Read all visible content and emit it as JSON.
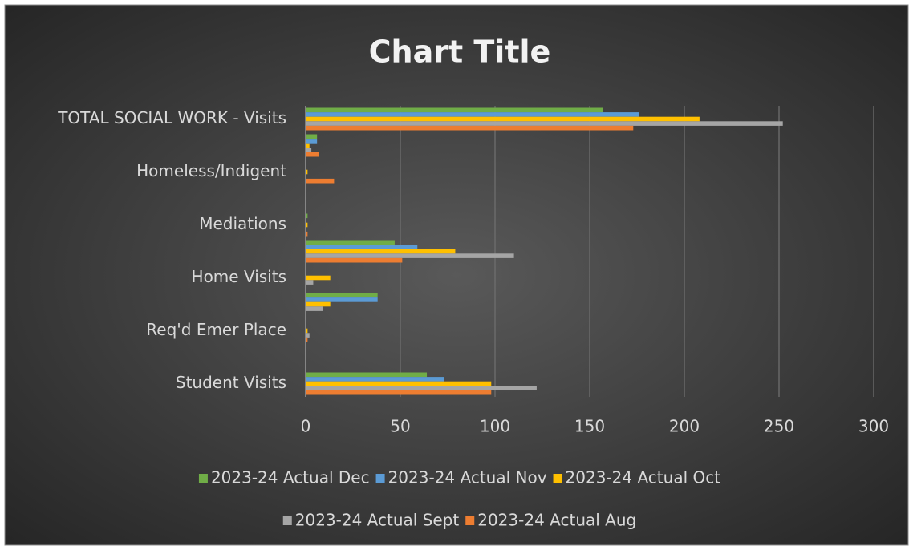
{
  "chart_data": {
    "type": "bar",
    "orientation": "horizontal",
    "title": "Chart Title",
    "categories": [
      "Student Visits",
      null,
      "Req'd Emer Place",
      null,
      "Home Visits",
      null,
      "Mediations",
      null,
      "Homeless/Indigent",
      null,
      "TOTAL SOCIAL WORK - Visits"
    ],
    "series": [
      {
        "name": "2023-24 Actual Dec",
        "color": "#70ad47",
        "values": [
          64,
          0,
          0,
          38,
          0,
          47,
          1,
          0,
          0,
          6,
          157
        ]
      },
      {
        "name": "2023-24 Actual Nov",
        "color": "#5b9bd5",
        "values": [
          73,
          0,
          0,
          38,
          0,
          59,
          0,
          0,
          0,
          6,
          176
        ]
      },
      {
        "name": "2023-24 Actual Oct",
        "color": "#ffc000",
        "values": [
          98,
          0,
          1,
          13,
          13,
          79,
          1,
          0,
          1,
          2,
          208
        ]
      },
      {
        "name": "2023-24 Actual Sept",
        "color": "#a5a5a5",
        "values": [
          122,
          0,
          2,
          9,
          4,
          110,
          0,
          0,
          0,
          3,
          252
        ]
      },
      {
        "name": "2023-24 Actual Aug",
        "color": "#ed7d31",
        "values": [
          98,
          0,
          1,
          0,
          0,
          51,
          1,
          0,
          15,
          7,
          173
        ]
      }
    ],
    "xlim": [
      0,
      300
    ],
    "xticks": [
      0,
      50,
      100,
      150,
      200,
      250,
      300
    ],
    "grid": true,
    "legend": "bottom"
  }
}
